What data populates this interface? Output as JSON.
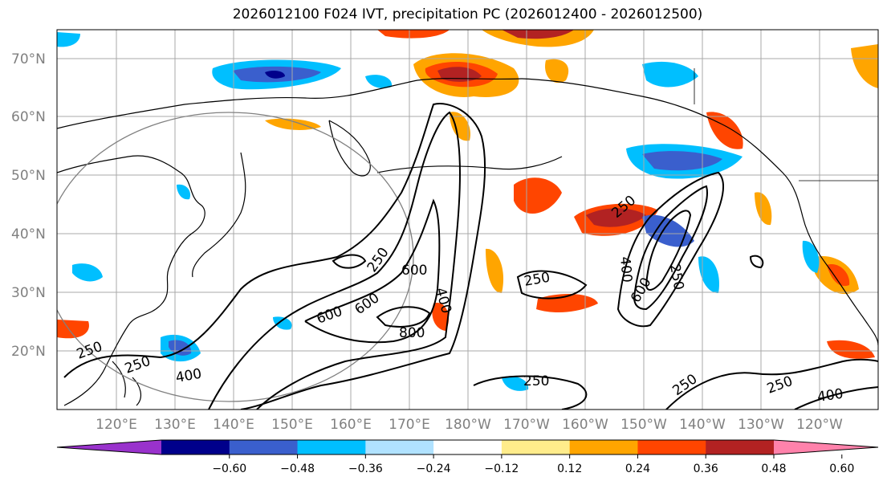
{
  "title": "2026012100 F024 IVT, precipitation PC (2026012400 - 2026012500)",
  "lat_labels": [
    "70°N",
    "60°N",
    "50°N",
    "40°N",
    "30°N",
    "20°N"
  ],
  "lon_labels": [
    "120°E",
    "130°E",
    "140°E",
    "150°E",
    "160°E",
    "170°E",
    "180°W",
    "170°W",
    "160°W",
    "150°W",
    "140°W",
    "130°W",
    "120°W"
  ],
  "colorbar": {
    "ticks": [
      "−0.60",
      "−0.48",
      "−0.36",
      "−0.24",
      "−0.12",
      "0.12",
      "0.24",
      "0.36",
      "0.48",
      "0.60"
    ],
    "colors": [
      "#9932cc",
      "#00008b",
      "#3a5fcd",
      "#00bfff",
      "#b0e2ff",
      "#ffffff",
      "#ffec8b",
      "#ffa500",
      "#ff4500",
      "#b22222",
      "#ff82ab"
    ]
  },
  "contour_labels": [
    {
      "text": "250"
    },
    {
      "text": "250"
    },
    {
      "text": "400"
    },
    {
      "text": "600"
    },
    {
      "text": "600"
    },
    {
      "text": "250"
    },
    {
      "text": "600"
    },
    {
      "text": "400"
    },
    {
      "text": "800"
    },
    {
      "text": "250"
    },
    {
      "text": "250"
    },
    {
      "text": "250"
    },
    {
      "text": "400"
    },
    {
      "text": "600"
    },
    {
      "text": "250"
    },
    {
      "text": "250"
    },
    {
      "text": "250"
    },
    {
      "text": "400"
    }
  ]
}
